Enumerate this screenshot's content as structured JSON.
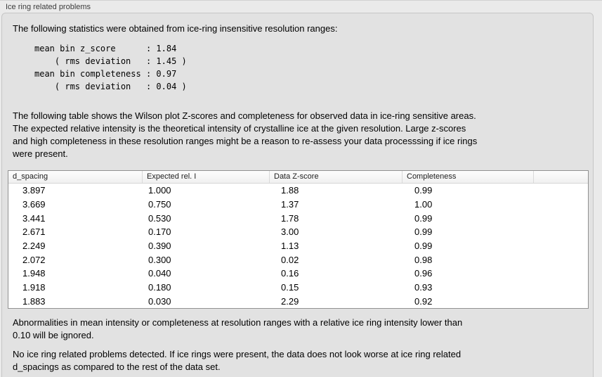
{
  "panel": {
    "title": "Ice ring related problems"
  },
  "intro": {
    "text": "The following statistics were obtained from ice-ring insensitive resolution ranges:"
  },
  "stats_block": {
    "text": "mean bin z_score      : 1.84\n    ( rms deviation   : 1.45 )\nmean bin completeness : 0.97\n    ( rms deviation   : 0.04 )"
  },
  "table_description": {
    "text": "The following table shows the Wilson plot Z-scores and completeness for observed data in ice-ring sensitive areas.\nThe expected relative intensity is the theoretical intensity of crystalline ice at the given resolution. Large z-scores\nand high completeness in these resolution ranges might be a reason to re-assess your data processsing if ice rings\nwere present."
  },
  "table": {
    "columns": [
      "d_spacing",
      "Expected rel. I",
      "Data Z-score",
      "Completeness"
    ],
    "rows": [
      [
        "3.897",
        "1.000",
        "1.88",
        "0.99"
      ],
      [
        "3.669",
        "0.750",
        "1.37",
        "1.00"
      ],
      [
        "3.441",
        "0.530",
        "1.78",
        "0.99"
      ],
      [
        "2.671",
        "0.170",
        "3.00",
        "0.99"
      ],
      [
        "2.249",
        "0.390",
        "1.13",
        "0.99"
      ],
      [
        "2.072",
        "0.300",
        "0.02",
        "0.98"
      ],
      [
        "1.948",
        "0.040",
        "0.16",
        "0.96"
      ],
      [
        "1.918",
        "0.180",
        "0.15",
        "0.93"
      ],
      [
        "1.883",
        "0.030",
        "2.29",
        "0.92"
      ]
    ]
  },
  "notes": {
    "ignore_note": "Abnormalities in mean intensity or completeness at resolution ranges with a relative ice ring intensity lower than\n0.10 will be ignored.",
    "conclusion": "No ice ring related problems detected. If ice rings were present, the data does not look worse at ice ring related\nd_spacings as compared to the rest of the data set."
  },
  "colors": {
    "outer_bg": "#eaeaea",
    "panel_bg": "#e2e2e2",
    "panel_border": "#c6c6c6",
    "table_bg": "#ffffff",
    "table_border": "#919191"
  }
}
